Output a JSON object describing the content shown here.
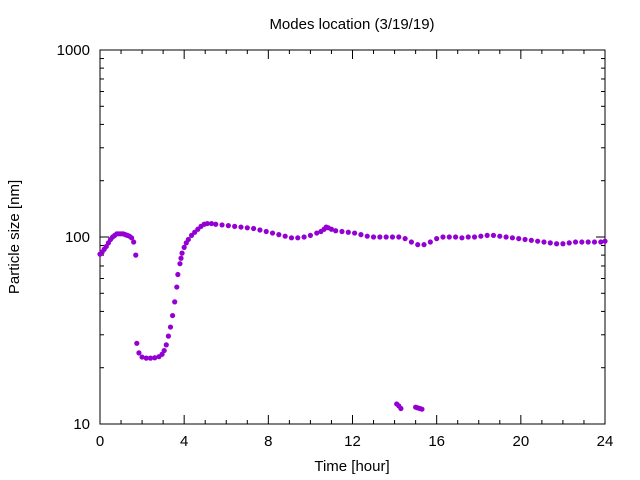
{
  "chart_data": {
    "type": "scatter",
    "title": "Modes location (3/19/19)",
    "xlabel": "Time [hour]",
    "ylabel": "Particle size [nm]",
    "xlim": [
      0,
      24
    ],
    "ylim": [
      10,
      1000
    ],
    "yscale": "log",
    "x_ticks": [
      0,
      4,
      8,
      12,
      16,
      20,
      24
    ],
    "x_tick_labels": [
      "0",
      "4",
      "8",
      "12",
      "16",
      "20",
      "24"
    ],
    "y_ticks": [
      10,
      100,
      1000
    ],
    "y_tick_labels": [
      "10",
      "100",
      "1000"
    ],
    "grid": false,
    "legend": "none",
    "marker_color": "#9400d3",
    "series": [
      {
        "points": [
          [
            0.0,
            81
          ],
          [
            0.1,
            83
          ],
          [
            0.2,
            86
          ],
          [
            0.3,
            89
          ],
          [
            0.4,
            93
          ],
          [
            0.5,
            97
          ],
          [
            0.6,
            100
          ],
          [
            0.7,
            102
          ],
          [
            0.8,
            104
          ],
          [
            0.9,
            104
          ],
          [
            1.0,
            104
          ],
          [
            1.1,
            104
          ],
          [
            1.2,
            103
          ],
          [
            1.3,
            102
          ],
          [
            1.4,
            101
          ],
          [
            1.5,
            99
          ],
          [
            1.6,
            94
          ],
          [
            1.7,
            80
          ],
          [
            1.75,
            27
          ],
          [
            1.85,
            24
          ],
          [
            2.0,
            22.8
          ],
          [
            2.2,
            22.5
          ],
          [
            2.4,
            22.5
          ],
          [
            2.6,
            22.6
          ],
          [
            2.8,
            22.9
          ],
          [
            2.95,
            23.6
          ],
          [
            3.05,
            24.7
          ],
          [
            3.15,
            26.5
          ],
          [
            3.25,
            29.5
          ],
          [
            3.35,
            33
          ],
          [
            3.45,
            38
          ],
          [
            3.55,
            45
          ],
          [
            3.65,
            54
          ],
          [
            3.7,
            63
          ],
          [
            3.8,
            72
          ],
          [
            3.85,
            77
          ],
          [
            3.9,
            82
          ],
          [
            4.0,
            88
          ],
          [
            4.1,
            93
          ],
          [
            4.2,
            97
          ],
          [
            4.35,
            102
          ],
          [
            4.5,
            106
          ],
          [
            4.65,
            110
          ],
          [
            4.8,
            114
          ],
          [
            4.95,
            117
          ],
          [
            5.1,
            118
          ],
          [
            5.3,
            118
          ],
          [
            5.5,
            117
          ],
          [
            5.8,
            116
          ],
          [
            6.1,
            115
          ],
          [
            6.4,
            114
          ],
          [
            6.7,
            113
          ],
          [
            7.0,
            112
          ],
          [
            7.3,
            111
          ],
          [
            7.6,
            109
          ],
          [
            7.9,
            107
          ],
          [
            8.2,
            105
          ],
          [
            8.5,
            103
          ],
          [
            8.8,
            101
          ],
          [
            9.1,
            99
          ],
          [
            9.4,
            99
          ],
          [
            9.7,
            100
          ],
          [
            10.0,
            102
          ],
          [
            10.3,
            105
          ],
          [
            10.5,
            107
          ],
          [
            10.65,
            110
          ],
          [
            10.75,
            113
          ],
          [
            10.85,
            112
          ],
          [
            11.0,
            110
          ],
          [
            11.2,
            108
          ],
          [
            11.5,
            107
          ],
          [
            11.8,
            106
          ],
          [
            12.1,
            105
          ],
          [
            12.4,
            103
          ],
          [
            12.7,
            101
          ],
          [
            13.0,
            100
          ],
          [
            13.3,
            100
          ],
          [
            13.6,
            100
          ],
          [
            13.9,
            100
          ],
          [
            14.2,
            100
          ],
          [
            14.5,
            98
          ],
          [
            14.8,
            94
          ],
          [
            15.1,
            91
          ],
          [
            15.4,
            91
          ],
          [
            15.7,
            94
          ],
          [
            16.0,
            98
          ],
          [
            16.3,
            100
          ],
          [
            16.6,
            100
          ],
          [
            16.9,
            100
          ],
          [
            17.2,
            99
          ],
          [
            17.5,
            100
          ],
          [
            17.8,
            100
          ],
          [
            18.1,
            101
          ],
          [
            18.4,
            102
          ],
          [
            18.7,
            102
          ],
          [
            19.0,
            101
          ],
          [
            19.3,
            100
          ],
          [
            19.6,
            99
          ],
          [
            19.9,
            98
          ],
          [
            20.2,
            97
          ],
          [
            20.5,
            96
          ],
          [
            20.8,
            95
          ],
          [
            21.1,
            94
          ],
          [
            21.4,
            93
          ],
          [
            21.7,
            92
          ],
          [
            22.0,
            92
          ],
          [
            22.3,
            93
          ],
          [
            22.6,
            94
          ],
          [
            22.9,
            94
          ],
          [
            23.2,
            94
          ],
          [
            23.5,
            94
          ],
          [
            23.8,
            94
          ],
          [
            24.0,
            95
          ]
        ]
      },
      {
        "points": [
          [
            14.1,
            12.8
          ],
          [
            14.2,
            12.5
          ],
          [
            14.3,
            12.1
          ],
          [
            15.0,
            12.3
          ],
          [
            15.1,
            12.2
          ],
          [
            15.2,
            12.1
          ],
          [
            15.3,
            12.0
          ]
        ]
      }
    ]
  }
}
